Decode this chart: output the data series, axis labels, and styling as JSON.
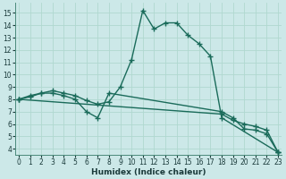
{
  "xlabel": "Humidex (Indice chaleur)",
  "bg_color": "#cce8e8",
  "line_color": "#1a6b5a",
  "xlim": [
    -0.3,
    23.3
  ],
  "ylim": [
    3.5,
    15.8
  ],
  "xticks": [
    0,
    1,
    2,
    3,
    4,
    5,
    6,
    7,
    8,
    9,
    10,
    11,
    12,
    13,
    14,
    15,
    16,
    17,
    18,
    19,
    20,
    21,
    22,
    23
  ],
  "yticks": [
    4,
    5,
    6,
    7,
    8,
    9,
    10,
    11,
    12,
    13,
    14,
    15
  ],
  "grid_color": "#b0d8d0",
  "linewidth": 1.0,
  "markersize": 4,
  "lines": [
    {
      "x": [
        0,
        1,
        2,
        3,
        4,
        5,
        6,
        7,
        8,
        9,
        10,
        11,
        12,
        13,
        14,
        15,
        16,
        17,
        18,
        23
      ],
      "y": [
        8.0,
        8.3,
        8.5,
        8.7,
        8.5,
        8.3,
        7.9,
        7.6,
        7.8,
        9.0,
        11.2,
        15.2,
        13.7,
        14.2,
        14.2,
        13.2,
        12.5,
        11.5,
        6.5,
        3.7
      ]
    },
    {
      "x": [
        0,
        1,
        2,
        3,
        4,
        5,
        6,
        7,
        8,
        18,
        19,
        20,
        21,
        22,
        23
      ],
      "y": [
        8.0,
        8.2,
        8.5,
        8.5,
        8.3,
        8.0,
        7.0,
        6.5,
        8.5,
        7.0,
        6.5,
        5.6,
        5.5,
        5.2,
        3.7
      ]
    },
    {
      "x": [
        0,
        18,
        19,
        20,
        21,
        22,
        23
      ],
      "y": [
        8.0,
        6.8,
        6.3,
        6.0,
        5.8,
        5.5,
        3.7
      ]
    }
  ]
}
